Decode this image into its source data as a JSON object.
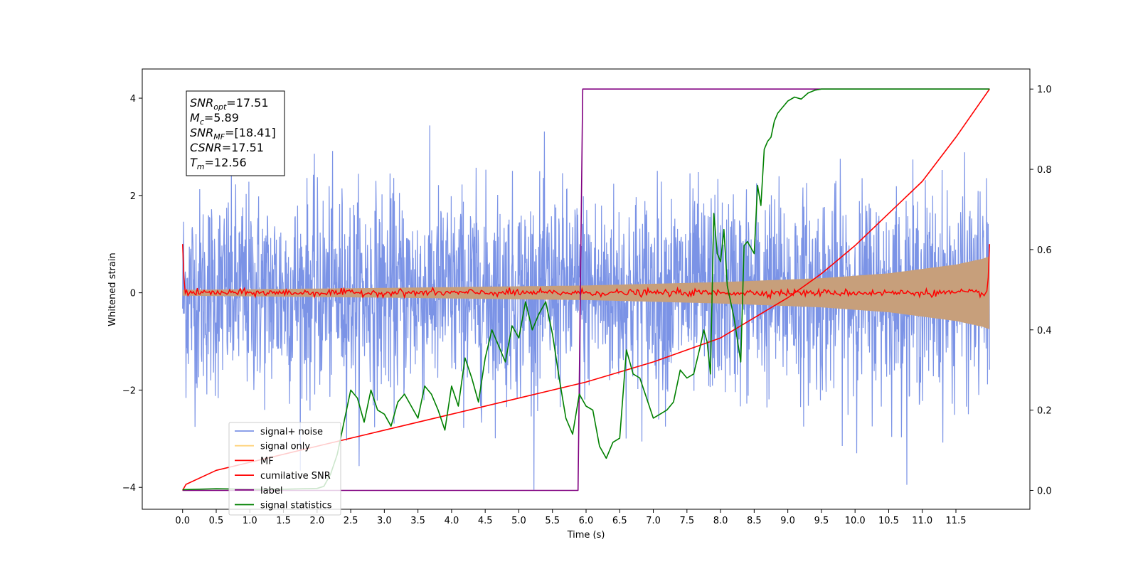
{
  "chart_data": {
    "type": "line",
    "xlabel": "Time (s)",
    "ylabel": "Whitened strain",
    "xlim": [
      -0.6,
      12.6
    ],
    "ylim": [
      -4.45,
      4.6
    ],
    "y2lim": [
      -0.047,
      1.05
    ],
    "x_ticks": [
      "0.0",
      "0.5",
      "1.0",
      "1.5",
      "2.0",
      "2.5",
      "3.0",
      "3.5",
      "4.0",
      "4.5",
      "5.0",
      "5.5",
      "6.0",
      "6.5",
      "7.0",
      "7.5",
      "8.0",
      "8.5",
      "9.0",
      "9.5",
      "10.0",
      "10.5",
      "11.0",
      "11.5"
    ],
    "y_ticks": [
      "−4",
      "−2",
      "0",
      "2",
      "4"
    ],
    "y2_ticks": [
      "0.0",
      "0.2",
      "0.4",
      "0.6",
      "0.8",
      "1.0"
    ],
    "info_box": [
      {
        "sym": "SNR",
        "sub": "opt",
        "val": "=17.51"
      },
      {
        "sym": "M",
        "sub": "c",
        "val": "=5.89"
      },
      {
        "sym": "SNR",
        "sub": "MF",
        "val": "=[18.41]"
      },
      {
        "sym": "CSNR",
        "sub": "",
        "val": "=17.51"
      },
      {
        "sym": "T",
        "sub": "m",
        "val": "=12.56"
      }
    ],
    "legend": [
      {
        "label": "signal+ noise",
        "color": "#7b93e6"
      },
      {
        "label": "signal only",
        "color": "#ffd27a"
      },
      {
        "label": "MF",
        "color": "#ff0000"
      },
      {
        "label": "cumilative SNR",
        "color": "#ff0000"
      },
      {
        "label": "label",
        "color": "#800080"
      },
      {
        "label": "signal statistics",
        "color": "#008000"
      }
    ],
    "legend_position": "lower-left",
    "series": [
      {
        "name": "signal+ noise",
        "axis": "left",
        "color": "#7b93e6",
        "kind": "noise",
        "x_range": [
          0,
          12
        ],
        "sigma": 1.05
      },
      {
        "name": "signal only",
        "axis": "left",
        "color": "#c79f7b",
        "kind": "envelope",
        "x": [
          0,
          3,
          6,
          8,
          9.5,
          10.5,
          11.5,
          11.9,
          12
        ],
        "amp": [
          0.06,
          0.1,
          0.15,
          0.22,
          0.3,
          0.4,
          0.58,
          0.7,
          0.75
        ]
      },
      {
        "name": "MF",
        "axis": "left",
        "color": "#ff0000",
        "kind": "mf",
        "x_range": [
          0,
          12
        ],
        "edge_value": 1.0
      },
      {
        "name": "cumilative SNR",
        "axis": "right",
        "color": "#ff0000",
        "kind": "line",
        "x": [
          0,
          0.05,
          0.5,
          1,
          2,
          3,
          4,
          5,
          6,
          7,
          8,
          9,
          9.5,
          10,
          10.5,
          11,
          11.5,
          12
        ],
        "y": [
          0,
          0.015,
          0.05,
          0.07,
          0.11,
          0.15,
          0.19,
          0.23,
          0.27,
          0.32,
          0.38,
          0.48,
          0.54,
          0.61,
          0.69,
          0.77,
          0.88,
          1.0
        ]
      },
      {
        "name": "label",
        "axis": "right",
        "color": "#800080",
        "kind": "line",
        "x": [
          0,
          5.88,
          5.95,
          12
        ],
        "y": [
          0,
          0,
          1,
          1
        ]
      },
      {
        "name": "signal statistics",
        "axis": "right",
        "color": "#008000",
        "kind": "line",
        "x": [
          0,
          0.5,
          1,
          1.5,
          2,
          2.1,
          2.2,
          2.3,
          2.4,
          2.5,
          2.6,
          2.7,
          2.8,
          2.9,
          3.0,
          3.1,
          3.2,
          3.3,
          3.4,
          3.5,
          3.6,
          3.7,
          3.8,
          3.9,
          4.0,
          4.1,
          4.2,
          4.3,
          4.4,
          4.5,
          4.6,
          4.7,
          4.8,
          4.9,
          5.0,
          5.1,
          5.2,
          5.3,
          5.4,
          5.5,
          5.6,
          5.7,
          5.8,
          5.9,
          6.0,
          6.1,
          6.2,
          6.3,
          6.4,
          6.5,
          6.6,
          6.7,
          6.8,
          6.9,
          7.0,
          7.1,
          7.2,
          7.3,
          7.4,
          7.5,
          7.6,
          7.7,
          7.75,
          7.8,
          7.85,
          7.9,
          7.95,
          8.0,
          8.05,
          8.1,
          8.2,
          8.3,
          8.35,
          8.4,
          8.5,
          8.55,
          8.6,
          8.65,
          8.7,
          8.75,
          8.8,
          8.85,
          8.9,
          9.0,
          9.1,
          9.2,
          9.3,
          9.4,
          9.5,
          9.6,
          9.8,
          10.0,
          10.5,
          11.0,
          11.5,
          12.0
        ],
        "y": [
          0.002,
          0.004,
          0.003,
          0.003,
          0.005,
          0.01,
          0.04,
          0.09,
          0.17,
          0.25,
          0.23,
          0.17,
          0.25,
          0.2,
          0.19,
          0.16,
          0.22,
          0.24,
          0.21,
          0.18,
          0.26,
          0.24,
          0.2,
          0.15,
          0.26,
          0.21,
          0.33,
          0.28,
          0.22,
          0.33,
          0.4,
          0.36,
          0.32,
          0.41,
          0.38,
          0.47,
          0.4,
          0.44,
          0.47,
          0.39,
          0.28,
          0.18,
          0.14,
          0.24,
          0.21,
          0.2,
          0.11,
          0.08,
          0.12,
          0.13,
          0.35,
          0.29,
          0.28,
          0.23,
          0.18,
          0.19,
          0.2,
          0.22,
          0.3,
          0.28,
          0.29,
          0.36,
          0.4,
          0.37,
          0.29,
          0.69,
          0.59,
          0.57,
          0.65,
          0.51,
          0.43,
          0.32,
          0.61,
          0.62,
          0.59,
          0.76,
          0.71,
          0.85,
          0.87,
          0.88,
          0.92,
          0.94,
          0.95,
          0.97,
          0.98,
          0.975,
          0.99,
          0.997,
          1.0,
          1.0,
          1.0,
          1.0,
          1.0,
          1.0,
          1.0,
          1.0
        ]
      }
    ]
  }
}
